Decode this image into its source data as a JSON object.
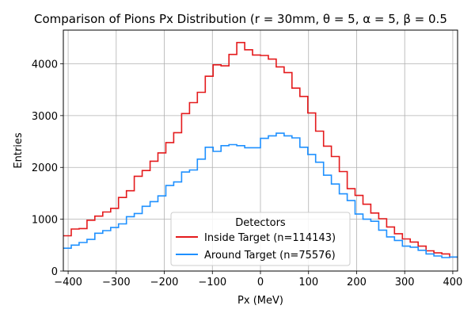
{
  "chart_data": {
    "type": "histogram",
    "title": "Comparison of Pions Px Distribution (r = 30mm, θ = 5, α = 5, β = 0.5",
    "xlabel": "Px (MeV)",
    "ylabel": "Entries",
    "xlim": [
      -410,
      410
    ],
    "ylim": [
      0,
      4650
    ],
    "xticks": [
      -400,
      -300,
      -200,
      -100,
      0,
      100,
      200,
      300,
      400
    ],
    "yticks": [
      0,
      1000,
      2000,
      3000,
      4000
    ],
    "grid": true,
    "legend": {
      "title": "Detectors",
      "position": "bottom-center"
    },
    "bin_edges": [
      -410,
      -393.6,
      -377.2,
      -360.8,
      -344.4,
      -328,
      -311.6,
      -295.2,
      -278.8,
      -262.4,
      -246,
      -229.6,
      -213.2,
      -196.8,
      -180.4,
      -164,
      -147.6,
      -131.2,
      -114.8,
      -98.4,
      -82,
      -65.6,
      -49.2,
      -32.8,
      -16.4,
      0,
      16.4,
      32.8,
      49.2,
      65.6,
      82,
      98.4,
      114.8,
      131.2,
      147.6,
      164,
      180.4,
      196.8,
      213.2,
      229.6,
      246,
      262.4,
      278.8,
      295.2,
      311.6,
      328,
      344.4,
      360.8,
      377.2,
      393.6,
      410
    ],
    "series": [
      {
        "name": "Inside Target (n=114143)",
        "color": "#e41a1c",
        "values": [
          680,
          810,
          820,
          980,
          1060,
          1140,
          1210,
          1420,
          1550,
          1830,
          1940,
          2120,
          2280,
          2480,
          2670,
          3040,
          3250,
          3450,
          3760,
          3980,
          3960,
          4180,
          4410,
          4270,
          4170,
          4160,
          4090,
          3940,
          3830,
          3530,
          3370,
          3050,
          2700,
          2410,
          2210,
          1920,
          1590,
          1460,
          1290,
          1120,
          1010,
          850,
          720,
          620,
          560,
          480,
          390,
          350,
          330,
          270
        ]
      },
      {
        "name": "Around Target (n=75576)",
        "color": "#1e90ff",
        "values": [
          440,
          500,
          550,
          610,
          730,
          780,
          840,
          910,
          1050,
          1110,
          1250,
          1340,
          1450,
          1650,
          1720,
          1910,
          1950,
          2160,
          2390,
          2310,
          2420,
          2440,
          2420,
          2380,
          2380,
          2560,
          2610,
          2660,
          2610,
          2570,
          2390,
          2250,
          2100,
          1850,
          1680,
          1490,
          1360,
          1100,
          1000,
          960,
          790,
          660,
          590,
          480,
          460,
          400,
          330,
          290,
          260,
          270
        ]
      }
    ]
  }
}
